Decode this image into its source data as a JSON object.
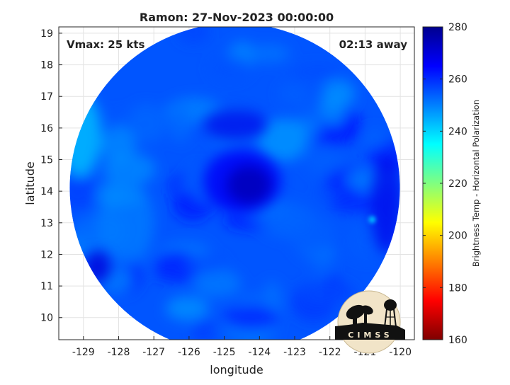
{
  "chart_data": {
    "type": "heatmap",
    "title": "Ramon: 27-Nov-2023 00:00:00",
    "xlabel": "longitude",
    "ylabel": "latitude",
    "xlim": [
      -129.7,
      -119.6
    ],
    "ylim": [
      9.3,
      19.2
    ],
    "xticks": [
      -129,
      -128,
      -127,
      -126,
      -125,
      -124,
      -123,
      -122,
      -121,
      -120
    ],
    "yticks": [
      10,
      11,
      12,
      13,
      14,
      15,
      16,
      17,
      18,
      19
    ],
    "grid": true,
    "annotations": {
      "vmax": "Vmax: 25 kts",
      "away": "02:13 away"
    },
    "colorbar": {
      "label": "Brightness Temp - Horizontal Polarization",
      "min": 160,
      "max": 280,
      "ticks": [
        160,
        180,
        200,
        220,
        240,
        260,
        280
      ],
      "colors": [
        "#7f0000",
        "#ff0000",
        "#ff8000",
        "#ffff00",
        "#80ff80",
        "#00ffff",
        "#0080ff",
        "#0000ff",
        "#00008f"
      ]
    },
    "swath": {
      "center_lon": -124.7,
      "center_lat": 14.1,
      "radius_deg": 5.2,
      "typical_tb": 255,
      "cold_core_tb": 270,
      "cold_core_center": [
        -124.5,
        14.3
      ]
    },
    "logo": {
      "text": "CIMSS"
    }
  }
}
